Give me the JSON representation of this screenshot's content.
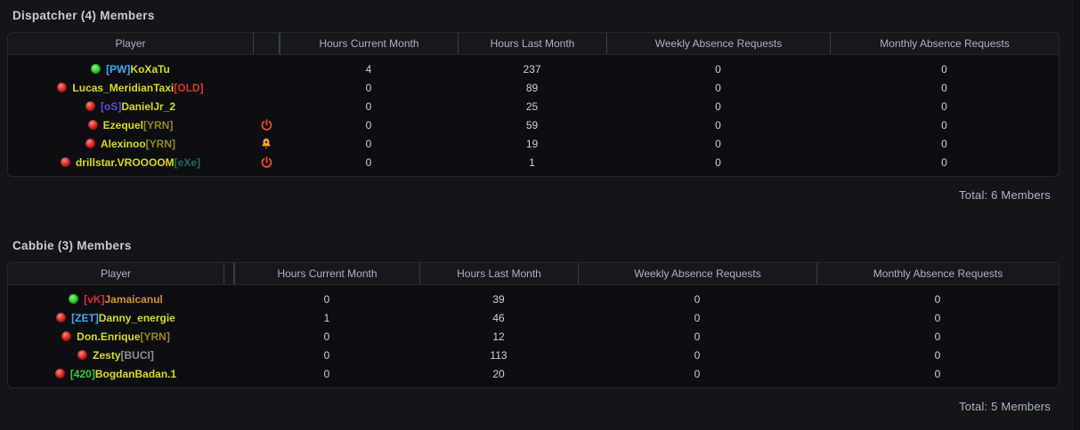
{
  "palette": {
    "page_bg": "#14151a",
    "card_bg": "#0d0e12",
    "header_bg": "#17181e",
    "number_text": "#ccd1db",
    "status_online": "#2ecc2e",
    "status_offline": "#d32222",
    "power_icon": "#e8491d",
    "bell_icon": "#f2a63b"
  },
  "icons": {
    "status_online": "green-status-dot",
    "status_offline": "red-status-dot",
    "power": "power-icon",
    "bell": "bell-icon"
  },
  "tables": [
    {
      "title": "Dispatcher (4) Members",
      "total": "Total: 6 Members",
      "columns": [
        "Player",
        "",
        "Hours Current Month",
        "Hours Last Month",
        "Weekly Absence Requests",
        "Monthly Absence Requests"
      ],
      "rows": [
        {
          "status": "online",
          "name_parts": [
            {
              "text": "[PW]",
              "color": "#3fa9f5"
            },
            {
              "text": "KoXaTu",
              "color": "#d9d920"
            }
          ],
          "action": "",
          "hours_current": "4",
          "hours_last": "237",
          "weekly_absence": "0",
          "monthly_absence": "0"
        },
        {
          "status": "offline",
          "name_parts": [
            {
              "text": "Lucas_MeridianTaxi",
              "color": "#d9d920"
            },
            {
              "text": "[OLD]",
              "color": "#e03131"
            }
          ],
          "action": "",
          "hours_current": "0",
          "hours_last": "89",
          "weekly_absence": "0",
          "monthly_absence": "0"
        },
        {
          "status": "offline",
          "name_parts": [
            {
              "text": "[oS]",
              "color": "#5a4fdf"
            },
            {
              "text": "DanielJr_2",
              "color": "#d9d920"
            }
          ],
          "action": "",
          "hours_current": "0",
          "hours_last": "25",
          "weekly_absence": "0",
          "monthly_absence": "0"
        },
        {
          "status": "offline",
          "name_parts": [
            {
              "text": "Ezequel",
              "color": "#d9d920"
            },
            {
              "text": "[YRN]",
              "color": "#968629"
            }
          ],
          "action": "power",
          "hours_current": "0",
          "hours_last": "59",
          "weekly_absence": "0",
          "monthly_absence": "0"
        },
        {
          "status": "offline",
          "name_parts": [
            {
              "text": "Alexinoo",
              "color": "#d9d920"
            },
            {
              "text": "[YRN]",
              "color": "#968629"
            }
          ],
          "action": "bell",
          "hours_current": "0",
          "hours_last": "19",
          "weekly_absence": "0",
          "monthly_absence": "0"
        },
        {
          "status": "offline",
          "name_parts": [
            {
              "text": "drillstar.VROOOOM",
              "color": "#d9d920"
            },
            {
              "text": "[eXe]",
              "color": "#1d6b63"
            }
          ],
          "action": "power",
          "hours_current": "0",
          "hours_last": "1",
          "weekly_absence": "0",
          "monthly_absence": "0"
        }
      ]
    },
    {
      "title": "Cabbie (3) Members",
      "total": "Total: 5 Members",
      "columns": [
        "Player",
        "",
        "Hours Current Month",
        "Hours Last Month",
        "Weekly Absence Requests",
        "Monthly Absence Requests"
      ],
      "rows": [
        {
          "status": "online",
          "name_parts": [
            {
              "text": "[vK]",
              "color": "#e03131"
            },
            {
              "text": "Jamaicanul",
              "color": "#cf9234"
            }
          ],
          "action": "",
          "hours_current": "0",
          "hours_last": "39",
          "weekly_absence": "0",
          "monthly_absence": "0"
        },
        {
          "status": "offline",
          "name_parts": [
            {
              "text": "[ZET]",
              "color": "#3fa9f5"
            },
            {
              "text": "Danny_energie",
              "color": "#d9d920"
            }
          ],
          "action": "",
          "hours_current": "1",
          "hours_last": "46",
          "weekly_absence": "0",
          "monthly_absence": "0"
        },
        {
          "status": "offline",
          "name_parts": [
            {
              "text": "Don.Enrique",
              "color": "#d9d920"
            },
            {
              "text": "[YRN]",
              "color": "#968629"
            }
          ],
          "action": "",
          "hours_current": "0",
          "hours_last": "12",
          "weekly_absence": "0",
          "monthly_absence": "0"
        },
        {
          "status": "offline",
          "name_parts": [
            {
              "text": "Zesty",
              "color": "#d9d920"
            },
            {
              "text": "[BUCI]",
              "color": "#8f9096"
            }
          ],
          "action": "",
          "hours_current": "0",
          "hours_last": "113",
          "weekly_absence": "0",
          "monthly_absence": "0"
        },
        {
          "status": "offline",
          "name_parts": [
            {
              "text": "[420]",
              "color": "#33cc33"
            },
            {
              "text": "BogdanBadan.1",
              "color": "#d9d920"
            }
          ],
          "action": "",
          "hours_current": "0",
          "hours_last": "20",
          "weekly_absence": "0",
          "monthly_absence": "0"
        }
      ]
    }
  ]
}
